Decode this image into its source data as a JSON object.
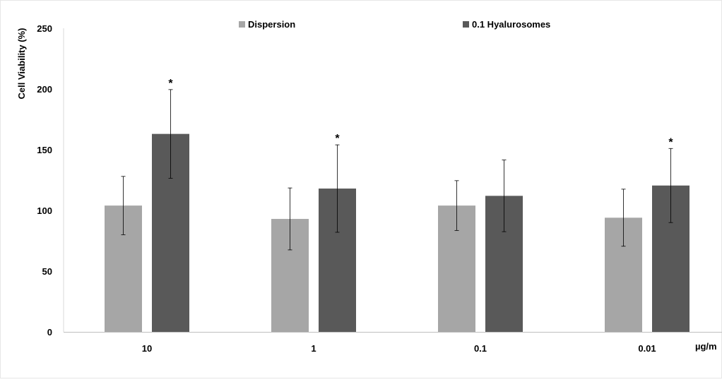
{
  "chart_data": {
    "type": "bar",
    "title": "",
    "xlabel": "",
    "x_unit_label": "µg/m",
    "ylabel": "Cell Viability (%)",
    "ylim": [
      0,
      250
    ],
    "yticks": [
      0,
      50,
      100,
      150,
      200,
      250
    ],
    "grid": false,
    "legend_position": "top",
    "categories": [
      "10",
      "1",
      "0.1",
      "0.01"
    ],
    "series": [
      {
        "name": "Dispersion",
        "color": "#a6a6a6",
        "values": [
          104,
          93,
          104,
          94
        ],
        "errors": [
          24,
          25.5,
          20.5,
          23.5
        ]
      },
      {
        "name": "0.1 Hyalurosomes",
        "color": "#595959",
        "values": [
          163,
          118,
          112,
          120.5
        ],
        "errors": [
          36.5,
          36,
          29.5,
          30.5
        ]
      }
    ],
    "annotations": [
      {
        "text": "*",
        "series": 1,
        "category": 0
      },
      {
        "text": "*",
        "series": 1,
        "category": 1
      },
      {
        "text": "*",
        "series": 1,
        "category": 3
      }
    ]
  }
}
